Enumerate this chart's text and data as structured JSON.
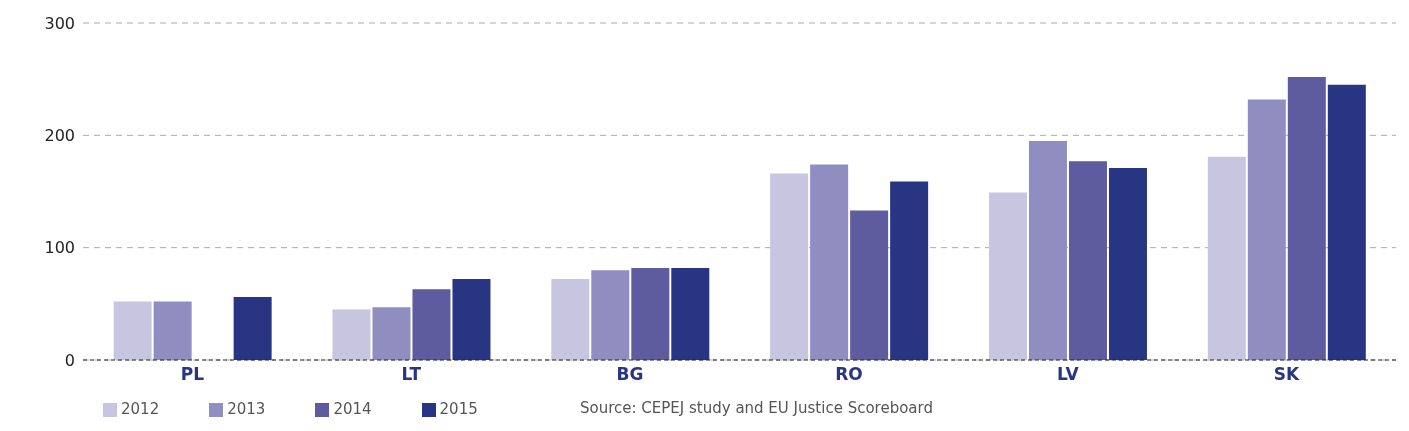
{
  "chart_data": {
    "type": "bar",
    "categories": [
      "PL",
      "LT",
      "BG",
      "RO",
      "LV",
      "SK"
    ],
    "series": [
      {
        "name": "2012",
        "color": "#c8c5e0",
        "values": [
          52,
          45,
          72,
          166,
          149,
          181
        ]
      },
      {
        "name": "2013",
        "color": "#908dc0",
        "values": [
          52,
          47,
          80,
          174,
          195,
          232
        ]
      },
      {
        "name": "2014",
        "color": "#5e5b9f",
        "values": [
          null,
          63,
          82,
          133,
          177,
          252
        ]
      },
      {
        "name": "2015",
        "color": "#283583",
        "values": [
          56,
          72,
          82,
          159,
          171,
          245
        ]
      }
    ],
    "ylim": [
      0,
      300
    ],
    "yticks": [
      0,
      100,
      200,
      300
    ],
    "grid": "y",
    "legend": "bottom left",
    "annotations": [
      "Source: CEPEJ study and EU Justice Scoreboard"
    ]
  }
}
